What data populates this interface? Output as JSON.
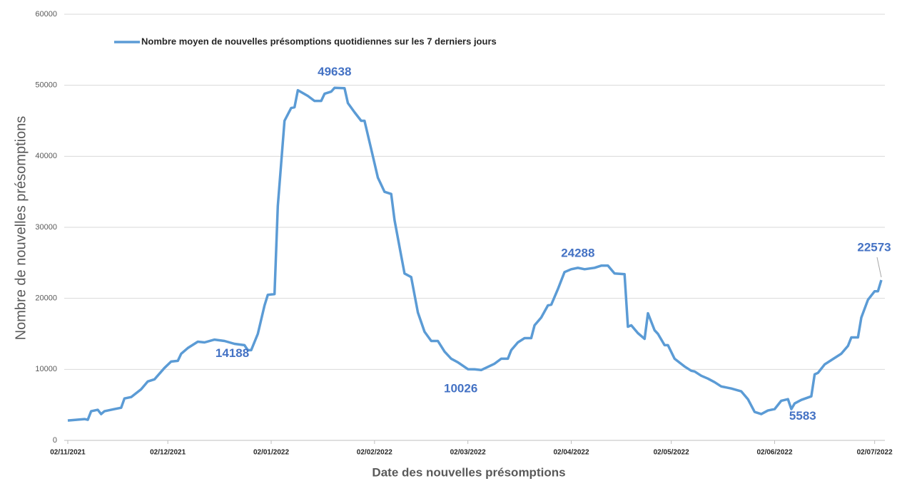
{
  "chart_data": {
    "type": "line",
    "xlabel": "Date des nouvelles présomptions",
    "ylabel": "Nombre de nouvelles présomptions",
    "xlim": [
      "02/11/2021",
      "04/07/2022"
    ],
    "xticks": [
      "02/11/2021",
      "02/12/2021",
      "02/01/2022",
      "02/02/2022",
      "02/03/2022",
      "02/04/2022",
      "02/05/2022",
      "02/06/2022",
      "02/07/2022"
    ],
    "ylim": [
      0,
      60000
    ],
    "yticks": [
      0,
      10000,
      20000,
      30000,
      40000,
      50000,
      60000
    ],
    "grid": true,
    "legend": "top",
    "x": [
      "02/11/2021",
      "07/11/2021",
      "08/11/2021",
      "09/11/2021",
      "11/11/2021",
      "12/11/2021",
      "13/11/2021",
      "16/11/2021",
      "18/11/2021",
      "19/11/2021",
      "21/11/2021",
      "24/11/2021",
      "26/11/2021",
      "28/11/2021",
      "01/12/2021",
      "03/12/2021",
      "05/12/2021",
      "06/12/2021",
      "08/12/2021",
      "11/12/2021",
      "13/12/2021",
      "16/12/2021",
      "19/12/2021",
      "22/12/2021",
      "25/12/2021",
      "26/12/2021",
      "27/12/2021",
      "29/12/2021",
      "31/12/2021",
      "01/01/2022",
      "03/01/2022",
      "04/01/2022",
      "06/01/2022",
      "08/01/2022",
      "09/01/2022",
      "10/01/2022",
      "13/01/2022",
      "15/01/2022",
      "17/01/2022",
      "18/01/2022",
      "20/01/2022",
      "21/01/2022",
      "24/01/2022",
      "25/01/2022",
      "27/01/2022",
      "29/01/2022",
      "30/01/2022",
      "01/02/2022",
      "03/02/2022",
      "05/02/2022",
      "07/02/2022",
      "08/02/2022",
      "10/02/2022",
      "11/02/2022",
      "13/02/2022",
      "15/02/2022",
      "17/02/2022",
      "19/02/2022",
      "21/02/2022",
      "23/02/2022",
      "25/02/2022",
      "27/02/2022",
      "02/03/2022",
      "04/03/2022",
      "06/03/2022",
      "10/03/2022",
      "12/03/2022",
      "14/03/2022",
      "15/03/2022",
      "17/03/2022",
      "19/03/2022",
      "21/03/2022",
      "22/03/2022",
      "24/03/2022",
      "26/03/2022",
      "27/03/2022",
      "29/03/2022",
      "31/03/2022",
      "02/04/2022",
      "04/04/2022",
      "06/04/2022",
      "09/04/2022",
      "11/04/2022",
      "13/04/2022",
      "15/04/2022",
      "18/04/2022",
      "19/04/2022",
      "20/04/2022",
      "22/04/2022",
      "24/04/2022",
      "25/04/2022",
      "27/04/2022",
      "28/04/2022",
      "30/04/2022",
      "01/05/2022",
      "03/05/2022",
      "06/05/2022",
      "08/05/2022",
      "09/05/2022",
      "11/05/2022",
      "13/05/2022",
      "15/05/2022",
      "17/05/2022",
      "20/05/2022",
      "23/05/2022",
      "25/05/2022",
      "27/05/2022",
      "29/05/2022",
      "31/05/2022",
      "02/06/2022",
      "04/06/2022",
      "06/06/2022",
      "07/06/2022",
      "08/06/2022",
      "10/06/2022",
      "13/06/2022",
      "14/06/2022",
      "15/06/2022",
      "17/06/2022",
      "19/06/2022",
      "22/06/2022",
      "24/06/2022",
      "25/06/2022",
      "27/06/2022",
      "28/06/2022",
      "30/06/2022",
      "02/07/2022",
      "03/07/2022",
      "04/07/2022"
    ],
    "series": [
      {
        "name": "Nombre moyen de nouvelles présomptions quotidiennes sur les 7 derniers jours",
        "color": "#5b9bd5",
        "values": [
          2800,
          3000,
          2900,
          4100,
          4300,
          3700,
          4100,
          4400,
          4600,
          5900,
          6100,
          7200,
          8300,
          8600,
          10200,
          11100,
          11200,
          12200,
          13000,
          13900,
          13800,
          14188,
          14000,
          13600,
          13400,
          12700,
          12700,
          15000,
          19000,
          20500,
          20600,
          33000,
          45000,
          46800,
          46900,
          49300,
          48500,
          47800,
          47800,
          48800,
          49100,
          49638,
          49600,
          47500,
          46200,
          45000,
          45000,
          41000,
          37000,
          35000,
          34700,
          31000,
          26000,
          23500,
          23000,
          18000,
          15300,
          14000,
          14000,
          12500,
          11500,
          11000,
          10026,
          10000,
          9900,
          10800,
          11500,
          11500,
          12700,
          13800,
          14400,
          14400,
          16200,
          17300,
          19000,
          19100,
          21300,
          23700,
          24100,
          24288,
          24100,
          24300,
          24600,
          24600,
          23500,
          23400,
          16000,
          16200,
          15100,
          14300,
          17900,
          15500,
          15000,
          13400,
          13400,
          11500,
          10400,
          9800,
          9700,
          9100,
          8700,
          8200,
          7600,
          7300,
          6900,
          5800,
          4000,
          3700,
          4200,
          4400,
          5583,
          5800,
          4400,
          5200,
          5700,
          6200,
          9300,
          9500,
          10700,
          11300,
          12200,
          13300,
          14500,
          14500,
          17300,
          19800,
          21000,
          21000,
          22573
        ],
        "value_labels": [
          null,
          null,
          null,
          null,
          null,
          null,
          null,
          null,
          null,
          null,
          null,
          null,
          null,
          null,
          null,
          null,
          null,
          null,
          null,
          null,
          null,
          "14188",
          null,
          null,
          null,
          null,
          null,
          null,
          null,
          null,
          null,
          null,
          null,
          null,
          null,
          null,
          null,
          null,
          null,
          null,
          null,
          "49638",
          null,
          null,
          null,
          null,
          null,
          null,
          null,
          null,
          null,
          null,
          null,
          null,
          null,
          null,
          null,
          null,
          null,
          null,
          null,
          null,
          "10026",
          null,
          null,
          null,
          null,
          null,
          null,
          null,
          null,
          null,
          null,
          null,
          null,
          null,
          null,
          null,
          null,
          "24288",
          null,
          null,
          null,
          null,
          null,
          null,
          null,
          null,
          null,
          null,
          null,
          null,
          null,
          null,
          null,
          null,
          null,
          null,
          null,
          null,
          null,
          null,
          null,
          null,
          null,
          null,
          null,
          null,
          null,
          null,
          "5583",
          null,
          null,
          null,
          null,
          null,
          null,
          null,
          null,
          null,
          null,
          null,
          null,
          null,
          null,
          null,
          null,
          null,
          "22573"
        ]
      }
    ]
  }
}
